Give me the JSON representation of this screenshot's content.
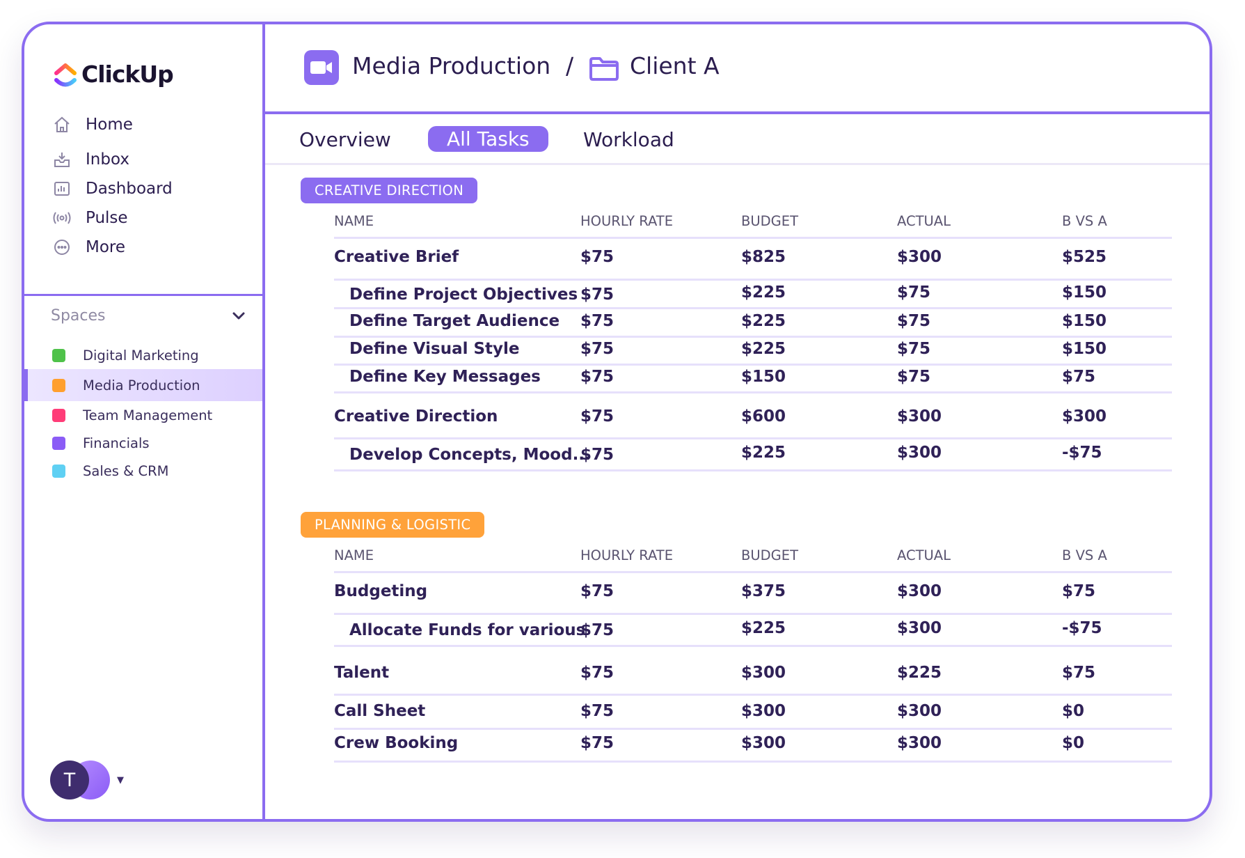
{
  "app": {
    "logo_text": "ClickUp"
  },
  "sidebar": {
    "nav": [
      {
        "label": "Home",
        "icon": "home-icon"
      },
      {
        "label": "Inbox",
        "icon": "inbox-icon"
      },
      {
        "label": "Dashboard",
        "icon": "dashboard-icon"
      },
      {
        "label": "Pulse",
        "icon": "pulse-icon"
      },
      {
        "label": "More",
        "icon": "more-icon"
      }
    ],
    "spaces_label": "Spaces",
    "spaces": [
      {
        "label": "Digital Marketing",
        "color": "#4fc24a"
      },
      {
        "label": "Media Production",
        "color": "#ff9f2e",
        "active": true
      },
      {
        "label": "Team Management",
        "color": "#ff3d78"
      },
      {
        "label": "Financials",
        "color": "#8b5cf6"
      },
      {
        "label": "Sales & CRM",
        "color": "#5fd0f3"
      }
    ],
    "avatar_initial": "T"
  },
  "header": {
    "title": "Media Production",
    "separator": "/",
    "subtitle": "Client A"
  },
  "tabs": [
    {
      "label": "Overview"
    },
    {
      "label": "All Tasks",
      "active": true
    },
    {
      "label": "Workload"
    }
  ],
  "columns": {
    "name": "NAME",
    "hourly_rate": "HOURLY RATE",
    "budget": "BUDGET",
    "actual": "ACTUAL",
    "bva": "B VS A"
  },
  "groups": [
    {
      "label": "CREATIVE DIRECTION",
      "color": "#8b6cf0",
      "rows": [
        {
          "name": "Creative Brief",
          "rate": "$75",
          "budget": "$825",
          "actual": "$300",
          "bva": "$525",
          "sub": false
        },
        {
          "name": "Define Project Objectives",
          "rate": "$75",
          "budget": "$225",
          "actual": "$75",
          "bva": "$150",
          "sub": true
        },
        {
          "name": "Define Target Audience",
          "rate": "$75",
          "budget": "$225",
          "actual": "$75",
          "bva": "$150",
          "sub": true
        },
        {
          "name": "Define Visual Style",
          "rate": "$75",
          "budget": "$225",
          "actual": "$75",
          "bva": "$150",
          "sub": true
        },
        {
          "name": "Define Key Messages",
          "rate": "$75",
          "budget": "$150",
          "actual": "$75",
          "bva": "$75",
          "sub": true
        },
        {
          "name": "Creative Direction",
          "rate": "$75",
          "budget": "$600",
          "actual": "$300",
          "bva": "$300",
          "sub": false
        },
        {
          "name": "Develop Concepts, Mood...",
          "rate": "$75",
          "budget": "$225",
          "actual": "$300",
          "bva": "-$75",
          "sub": true
        }
      ]
    },
    {
      "label": "PLANNING & LOGISTIC",
      "color": "#ffa23a",
      "rows": [
        {
          "name": "Budgeting",
          "rate": "$75",
          "budget": "$375",
          "actual": "$300",
          "bva": "$75",
          "sub": false
        },
        {
          "name": "Allocate Funds for various",
          "rate": "$75",
          "budget": "$225",
          "actual": "$300",
          "bva": "-$75",
          "sub": true
        },
        {
          "name": "Talent",
          "rate": "$75",
          "budget": "$300",
          "actual": "$225",
          "bva": "$75",
          "sub": false
        },
        {
          "name": "Call Sheet",
          "rate": "$75",
          "budget": "$300",
          "actual": "$300",
          "bva": "$0",
          "sub": false
        },
        {
          "name": "Crew Booking",
          "rate": "$75",
          "budget": "$300",
          "actual": "$300",
          "bva": "$0",
          "sub": false
        }
      ]
    }
  ]
}
